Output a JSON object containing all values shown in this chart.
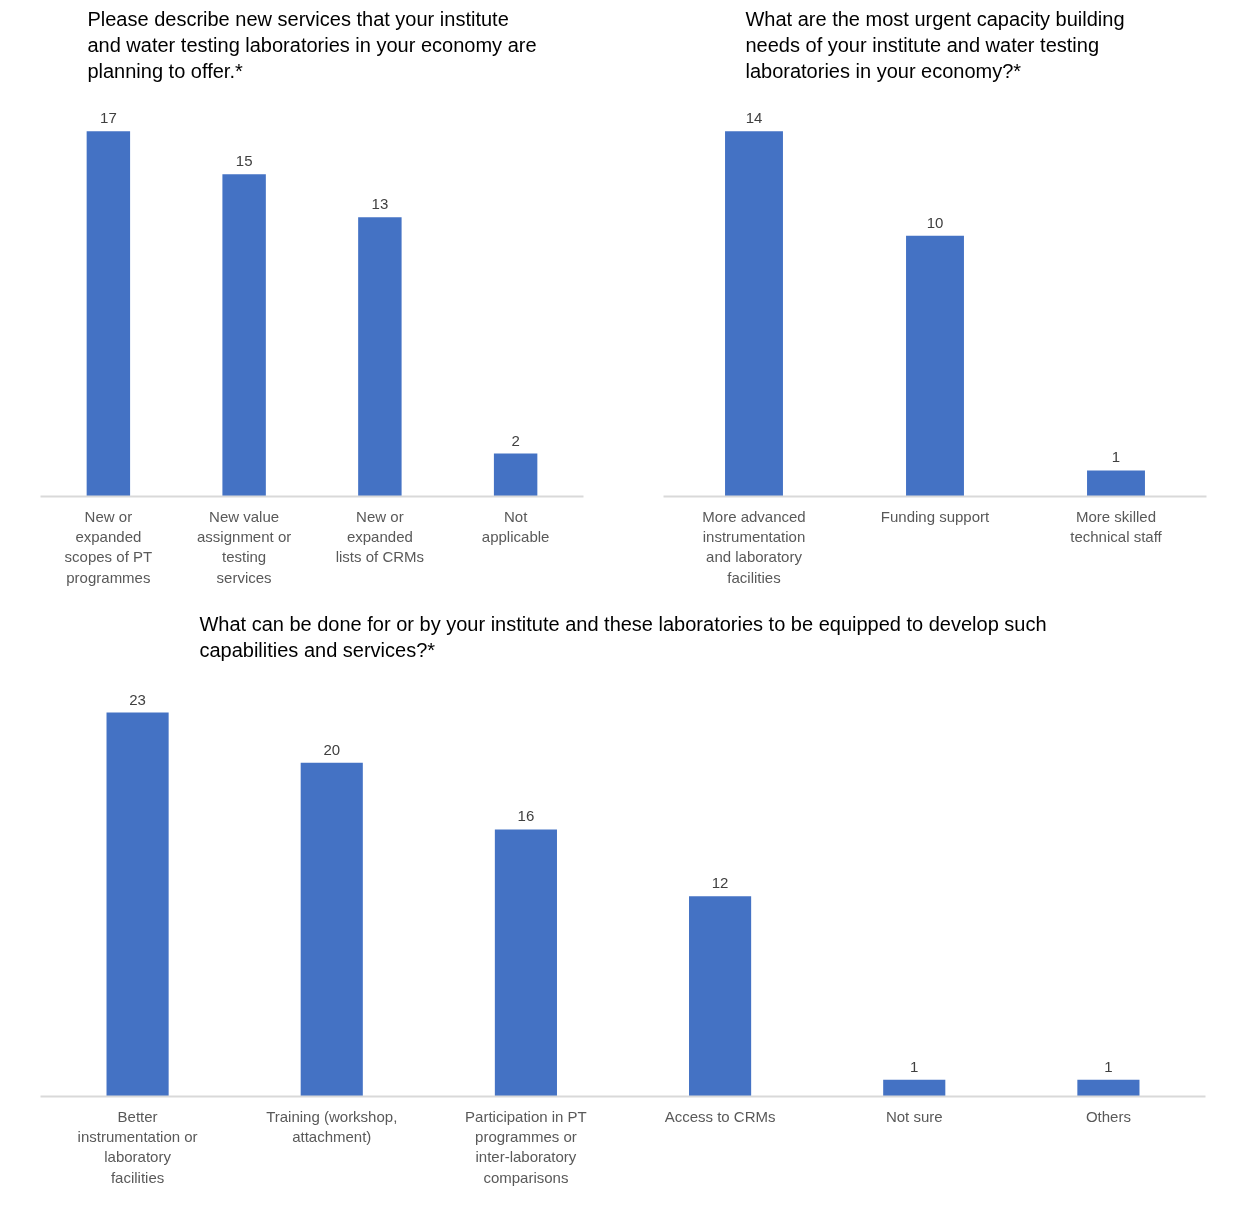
{
  "chart_data": [
    {
      "type": "bar",
      "title": "Please describe new services that your institute and water testing laboratories in your economy are planning to offer.*",
      "categories": [
        "New or expanded scopes of PT programmes",
        "New value assignment or testing services",
        "New or expanded lists of CRMs",
        "Not applicable"
      ],
      "values": [
        17,
        15,
        13,
        2
      ],
      "color": "#4472c4",
      "data_labels": true,
      "tick_labels": "x"
    },
    {
      "type": "bar",
      "title": "What are the most urgent capacity building needs of your institute and water testing laboratories in your economy?*",
      "categories": [
        "More advanced instrumentation and laboratory facilities",
        "Funding support",
        "More skilled technical staff"
      ],
      "values": [
        14,
        10,
        1
      ],
      "color": "#4472c4",
      "data_labels": true,
      "tick_labels": "x"
    },
    {
      "type": "bar",
      "title": "What can be done for or by your institute and these laboratories to be equipped to develop such capabilities and services?*",
      "categories": [
        "Better instrumentation or laboratory facilities",
        "Training (workshop, attachment)",
        "Participation in PT programmes or inter-laboratory comparisons",
        "Access to CRMs",
        "Not sure",
        "Others"
      ],
      "values": [
        23,
        20,
        16,
        12,
        1,
        1
      ],
      "color": "#4472c4",
      "data_labels": true,
      "tick_labels": "x"
    }
  ]
}
